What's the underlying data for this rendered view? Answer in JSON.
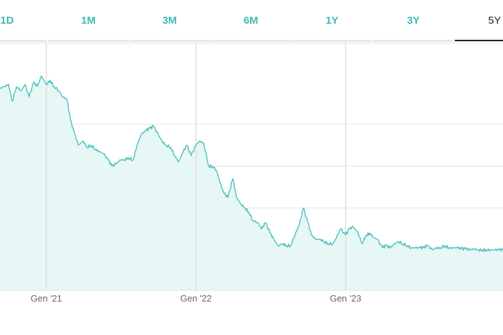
{
  "tabs": [
    {
      "label": "1D",
      "active": false
    },
    {
      "label": "1M",
      "active": false
    },
    {
      "label": "3M",
      "active": false
    },
    {
      "label": "6M",
      "active": false
    },
    {
      "label": "1Y",
      "active": false
    },
    {
      "label": "3Y",
      "active": false
    },
    {
      "label": "5Y",
      "active": true
    }
  ],
  "colors": {
    "accent": "#40b9b6",
    "line": "#4cc1bd",
    "fill": "#e6f7f6",
    "active_tab": "#222222",
    "grid": "#e3e3e3"
  },
  "chart_data": {
    "type": "area",
    "title": "",
    "xlabel": "",
    "ylabel": "",
    "grid": true,
    "x_tick_labels": [
      "Gen '21",
      "Gen '22",
      "Gen '23"
    ],
    "x_tick_dates": [
      "2021-01-01",
      "2022-01-01",
      "2023-01-01"
    ],
    "x_range": [
      "2020-09-10",
      "2024-01-20"
    ],
    "y_range": [
      0,
      100
    ],
    "y_gridlines": [
      20,
      40,
      60,
      80
    ],
    "series": [
      {
        "values": [
          [
            "2020-09-10",
            97
          ],
          [
            "2020-09-20",
            98
          ],
          [
            "2020-10-01",
            99
          ],
          [
            "2020-10-10",
            91
          ],
          [
            "2020-10-20",
            98
          ],
          [
            "2020-11-01",
            96
          ],
          [
            "2020-11-10",
            99
          ],
          [
            "2020-11-20",
            93
          ],
          [
            "2020-12-01",
            100
          ],
          [
            "2020-12-10",
            98
          ],
          [
            "2020-12-20",
            103
          ],
          [
            "2021-01-01",
            99
          ],
          [
            "2021-01-10",
            101
          ],
          [
            "2021-01-20",
            98
          ],
          [
            "2021-02-01",
            96
          ],
          [
            "2021-02-10",
            93
          ],
          [
            "2021-02-20",
            92
          ],
          [
            "2021-03-01",
            82
          ],
          [
            "2021-03-10",
            76
          ],
          [
            "2021-03-20",
            70
          ],
          [
            "2021-04-01",
            72
          ],
          [
            "2021-04-10",
            69
          ],
          [
            "2021-04-20",
            70
          ],
          [
            "2021-05-01",
            68
          ],
          [
            "2021-05-10",
            67
          ],
          [
            "2021-05-20",
            66
          ],
          [
            "2021-06-01",
            63
          ],
          [
            "2021-06-10",
            60
          ],
          [
            "2021-06-20",
            61
          ],
          [
            "2021-07-01",
            63
          ],
          [
            "2021-07-10",
            63
          ],
          [
            "2021-07-20",
            64
          ],
          [
            "2021-08-01",
            63
          ],
          [
            "2021-08-10",
            70
          ],
          [
            "2021-08-20",
            75
          ],
          [
            "2021-09-01",
            77
          ],
          [
            "2021-09-10",
            78
          ],
          [
            "2021-09-20",
            79
          ],
          [
            "2021-10-01",
            75
          ],
          [
            "2021-10-10",
            72
          ],
          [
            "2021-10-20",
            70
          ],
          [
            "2021-11-01",
            69
          ],
          [
            "2021-11-10",
            65
          ],
          [
            "2021-11-20",
            62
          ],
          [
            "2021-12-01",
            67
          ],
          [
            "2021-12-10",
            70
          ],
          [
            "2021-12-20",
            65
          ],
          [
            "2022-01-01",
            70
          ],
          [
            "2022-01-10",
            72
          ],
          [
            "2022-01-20",
            71
          ],
          [
            "2022-02-01",
            60
          ],
          [
            "2022-02-10",
            60
          ],
          [
            "2022-02-20",
            58
          ],
          [
            "2022-03-01",
            52
          ],
          [
            "2022-03-10",
            47
          ],
          [
            "2022-03-20",
            45
          ],
          [
            "2022-04-01",
            54
          ],
          [
            "2022-04-10",
            45
          ],
          [
            "2022-04-20",
            42
          ],
          [
            "2022-05-01",
            40
          ],
          [
            "2022-05-10",
            38
          ],
          [
            "2022-05-20",
            34
          ],
          [
            "2022-06-01",
            33
          ],
          [
            "2022-06-10",
            30
          ],
          [
            "2022-06-20",
            33
          ],
          [
            "2022-07-01",
            28
          ],
          [
            "2022-07-10",
            25
          ],
          [
            "2022-07-20",
            22
          ],
          [
            "2022-08-01",
            23
          ],
          [
            "2022-08-10",
            22
          ],
          [
            "2022-08-20",
            22
          ],
          [
            "2022-09-01",
            28
          ],
          [
            "2022-09-10",
            32
          ],
          [
            "2022-09-20",
            40
          ],
          [
            "2022-10-01",
            33
          ],
          [
            "2022-10-10",
            27
          ],
          [
            "2022-10-20",
            25
          ],
          [
            "2022-11-01",
            25
          ],
          [
            "2022-11-10",
            24
          ],
          [
            "2022-11-20",
            23
          ],
          [
            "2022-12-01",
            23
          ],
          [
            "2022-12-10",
            26
          ],
          [
            "2022-12-20",
            30
          ],
          [
            "2023-01-01",
            27
          ],
          [
            "2023-01-10",
            30
          ],
          [
            "2023-01-20",
            31
          ],
          [
            "2023-02-01",
            28
          ],
          [
            "2023-02-10",
            23
          ],
          [
            "2023-02-20",
            27
          ],
          [
            "2023-03-01",
            28
          ],
          [
            "2023-03-10",
            26
          ],
          [
            "2023-03-20",
            25
          ],
          [
            "2023-04-01",
            21
          ],
          [
            "2023-04-10",
            22
          ],
          [
            "2023-04-20",
            21
          ],
          [
            "2023-05-01",
            23
          ],
          [
            "2023-05-10",
            24
          ],
          [
            "2023-05-20",
            23
          ],
          [
            "2023-06-01",
            22
          ],
          [
            "2023-06-10",
            21
          ],
          [
            "2023-06-20",
            21
          ],
          [
            "2023-07-01",
            21
          ],
          [
            "2023-07-10",
            21
          ],
          [
            "2023-07-20",
            22
          ],
          [
            "2023-08-01",
            20
          ],
          [
            "2023-08-10",
            21
          ],
          [
            "2023-08-20",
            21
          ],
          [
            "2023-09-01",
            22
          ],
          [
            "2023-09-10",
            21
          ],
          [
            "2023-09-20",
            21
          ],
          [
            "2023-10-01",
            21
          ],
          [
            "2023-10-10",
            20.5
          ],
          [
            "2023-10-20",
            20.5
          ],
          [
            "2023-11-01",
            20
          ],
          [
            "2023-11-10",
            20.5
          ],
          [
            "2023-11-20",
            20
          ],
          [
            "2023-12-01",
            20
          ],
          [
            "2023-12-10",
            20
          ],
          [
            "2023-12-20",
            20
          ],
          [
            "2024-01-01",
            20
          ],
          [
            "2024-01-10",
            20
          ],
          [
            "2024-01-20",
            20
          ]
        ]
      }
    ]
  }
}
